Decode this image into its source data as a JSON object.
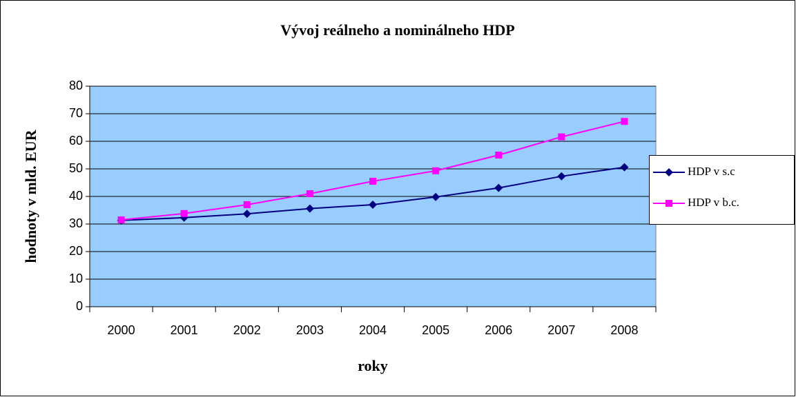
{
  "chart_data": {
    "type": "line",
    "title": "Vývoj reálneho a nominálneho HDP",
    "x_label": "roky",
    "y_label": "hodnoty v mld. EUR",
    "categories": [
      "2000",
      "2001",
      "2002",
      "2003",
      "2004",
      "2005",
      "2006",
      "2007",
      "2008"
    ],
    "series": [
      {
        "name": "HDP v s.c",
        "color": "#000080",
        "marker": "diamond",
        "values": [
          31.3,
          32.3,
          33.7,
          35.6,
          37.0,
          39.8,
          43.1,
          47.3,
          50.6
        ]
      },
      {
        "name": "HDP v b.c.",
        "color": "#ff00ff",
        "marker": "square",
        "values": [
          31.5,
          33.8,
          37.0,
          41.0,
          45.5,
          49.3,
          55.0,
          61.6,
          67.2
        ]
      }
    ],
    "ylim": [
      0,
      80
    ],
    "yticks": [
      0,
      10,
      20,
      30,
      40,
      50,
      60,
      70,
      80
    ],
    "grid": true,
    "legend": "right"
  }
}
